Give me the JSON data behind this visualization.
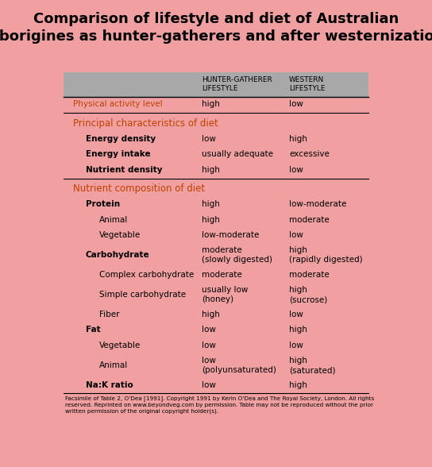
{
  "title": "Comparison of lifestyle and diet of Australian\nAborigines as hunter-gatherers and after westernization",
  "title_fontsize": 13,
  "bg_color": "#f0a0a0",
  "header_bg": "#a8a8a8",
  "col1_header": "HUNTER-GATHERER\nLIFESTYLE",
  "col2_header": "WESTERN\nLIFESTYLE",
  "footer": "Facsimile of Table 2, O'Dea [1991]. Copyright 1991 by Kerin O'Dea and The Royal Society, London. All rights\nreserved. Reprinted on www.beyondveg.com by permission. Table may not be reproduced without the prior\nwritten permission of the original copyright holder(s).",
  "rows": [
    {
      "label": "Physical activity level",
      "label_indent": 0,
      "label_bold": false,
      "label_color": "#c04000",
      "col1": "high",
      "col2": "low",
      "section_above": true,
      "is_section_header": false
    },
    {
      "label": "Principal characteristics of diet",
      "label_indent": 0,
      "label_bold": false,
      "label_color": "#c04000",
      "col1": "",
      "col2": "",
      "section_above": true,
      "is_section_header": true
    },
    {
      "label": "Energy density",
      "label_indent": 1,
      "label_bold": true,
      "label_color": "#000000",
      "col1": "low",
      "col2": "high",
      "section_above": false,
      "is_section_header": false
    },
    {
      "label": "Energy intake",
      "label_indent": 1,
      "label_bold": true,
      "label_color": "#000000",
      "col1": "usually adequate",
      "col2": "excessive",
      "section_above": false,
      "is_section_header": false
    },
    {
      "label": "Nutrient density",
      "label_indent": 1,
      "label_bold": true,
      "label_color": "#000000",
      "col1": "high",
      "col2": "low",
      "section_above": false,
      "is_section_header": false
    },
    {
      "label": "Nutrient composition of diet",
      "label_indent": 0,
      "label_bold": false,
      "label_color": "#c04000",
      "col1": "",
      "col2": "",
      "section_above": true,
      "is_section_header": true
    },
    {
      "label": "Protein",
      "label_indent": 1,
      "label_bold": true,
      "label_color": "#000000",
      "col1": "high",
      "col2": "low-moderate",
      "section_above": false,
      "is_section_header": false
    },
    {
      "label": "Animal",
      "label_indent": 2,
      "label_bold": false,
      "label_color": "#000000",
      "col1": "high",
      "col2": "moderate",
      "section_above": false,
      "is_section_header": false
    },
    {
      "label": "Vegetable",
      "label_indent": 2,
      "label_bold": false,
      "label_color": "#000000",
      "col1": "low-moderate",
      "col2": "low",
      "section_above": false,
      "is_section_header": false
    },
    {
      "label": "Carbohydrate",
      "label_indent": 1,
      "label_bold": true,
      "label_color": "#000000",
      "col1": "moderate\n(slowly digested)",
      "col2": "high\n(rapidly digested)",
      "section_above": false,
      "is_section_header": false
    },
    {
      "label": "Complex carbohydrate",
      "label_indent": 2,
      "label_bold": false,
      "label_color": "#000000",
      "col1": "moderate",
      "col2": "moderate",
      "section_above": false,
      "is_section_header": false
    },
    {
      "label": "Simple carbohydrate",
      "label_indent": 2,
      "label_bold": false,
      "label_color": "#000000",
      "col1": "usually low\n(honey)",
      "col2": "high\n(sucrose)",
      "section_above": false,
      "is_section_header": false
    },
    {
      "label": "Fiber",
      "label_indent": 2,
      "label_bold": false,
      "label_color": "#000000",
      "col1": "high",
      "col2": "low",
      "section_above": false,
      "is_section_header": false
    },
    {
      "label": "Fat",
      "label_indent": 1,
      "label_bold": true,
      "label_color": "#000000",
      "col1": "low",
      "col2": "high",
      "section_above": false,
      "is_section_header": false
    },
    {
      "label": "Vegetable",
      "label_indent": 2,
      "label_bold": false,
      "label_color": "#000000",
      "col1": "low",
      "col2": "low",
      "section_above": false,
      "is_section_header": false
    },
    {
      "label": "Animal",
      "label_indent": 2,
      "label_bold": false,
      "label_color": "#000000",
      "col1": "low\n(polyunsaturated)",
      "col2": "high\n(saturated)",
      "section_above": false,
      "is_section_header": false
    },
    {
      "label": "Na:K ratio",
      "label_indent": 1,
      "label_bold": true,
      "label_color": "#000000",
      "col1": "low",
      "col2": "high",
      "section_above": false,
      "is_section_header": false
    }
  ]
}
